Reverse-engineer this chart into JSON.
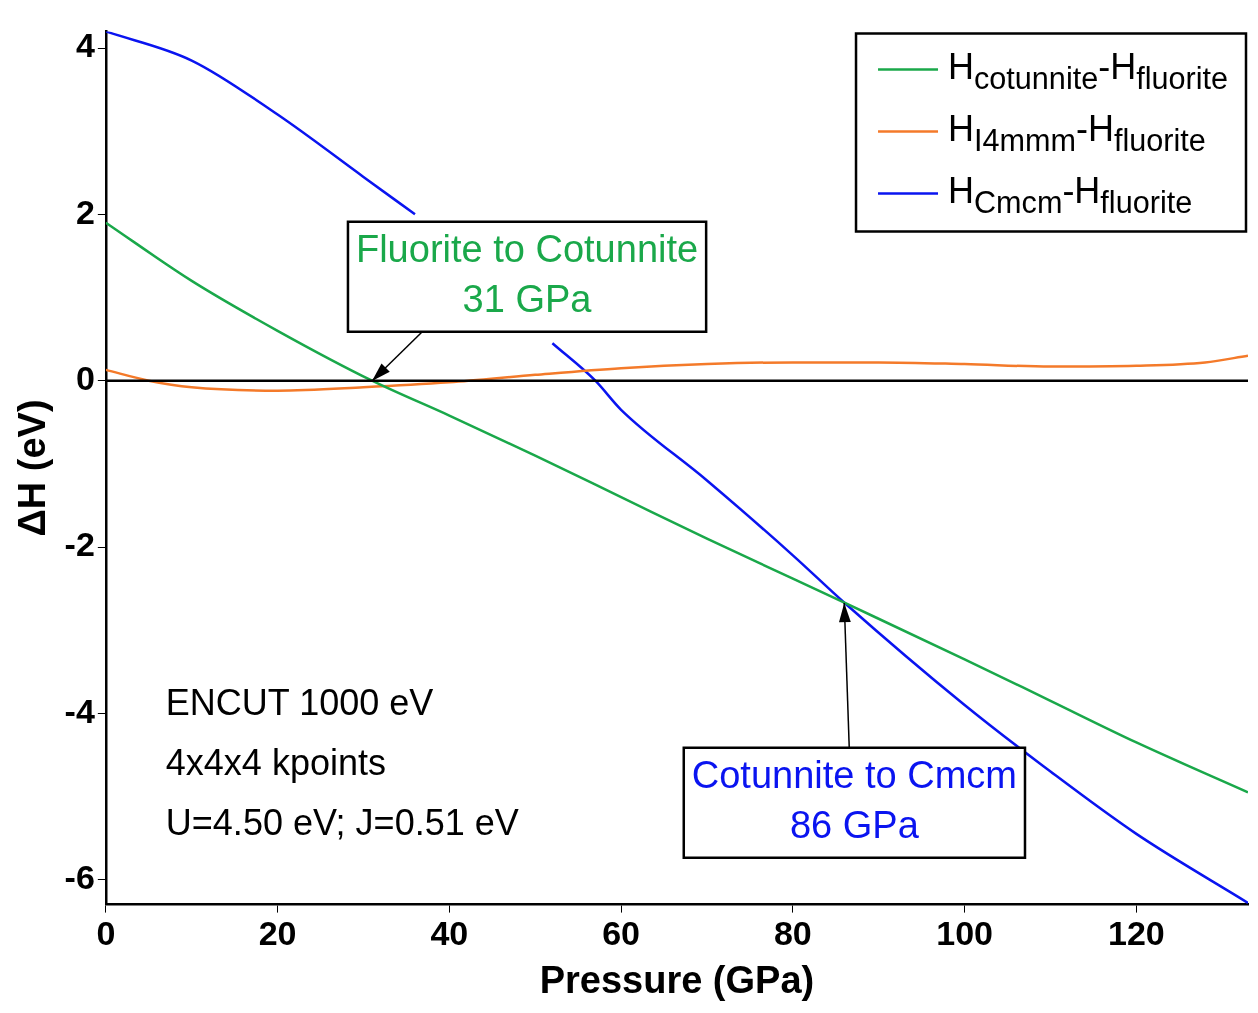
{
  "chart_data": {
    "type": "line",
    "xlabel": "Pressure (GPa)",
    "ylabel": "ΔH (eV)",
    "xlim": [
      0,
      133
    ],
    "ylim": [
      -6.3,
      4.2
    ],
    "xticks": [
      0,
      20,
      40,
      60,
      80,
      100,
      120
    ],
    "yticks": [
      -6,
      -4,
      -2,
      0,
      2,
      4
    ],
    "grid": false,
    "legend": "top right",
    "marker": "none",
    "line_style": "solid",
    "series": [
      {
        "name": "H$_{cotunnite}$-H$_{fluorite}$",
        "color": "#1aa84a",
        "x": [
          0,
          10,
          20,
          31,
          40,
          50,
          60,
          70,
          80,
          86,
          100,
          110,
          120,
          133
        ],
        "values": [
          1.9,
          1.2,
          0.6,
          0,
          -0.42,
          -0.9,
          -1.4,
          -1.9,
          -2.38,
          -2.67,
          -3.35,
          -3.85,
          -4.35,
          -4.95
        ]
      },
      {
        "name": "H$_{I4mmm}$-H$_{fluorite}$",
        "color": "#f47a2a",
        "x": [
          0,
          5,
          10,
          20,
          30,
          40,
          50,
          60,
          70,
          80,
          90,
          100,
          110,
          120,
          128,
          133
        ],
        "values": [
          0.13,
          0,
          -0.08,
          -0.12,
          -0.08,
          -0.02,
          0.07,
          0.15,
          0.2,
          0.22,
          0.22,
          0.2,
          0.17,
          0.18,
          0.22,
          0.3
        ]
      },
      {
        "name": "H$_{Cmcm}$-H$_{fluorite}$",
        "color": "#0a14f0",
        "x": [
          0,
          10,
          20,
          30,
          36,
          40,
          52,
          57,
          60,
          70,
          80,
          86,
          100,
          110,
          120,
          133
        ],
        "values": [
          4.2,
          3.85,
          3.2,
          2.45,
          2.0,
          null,
          0.45,
          0,
          -0.35,
          -1.2,
          -2.1,
          -2.67,
          -3.9,
          -4.7,
          -5.45,
          -6.28
        ]
      }
    ],
    "ref_lines": [
      {
        "axis": "y",
        "value": 0,
        "color": "#000000"
      }
    ],
    "annotations": [
      {
        "text": "Fluorite to Cotunnite\n31 GPa",
        "x": 31,
        "y": 0
      },
      {
        "text": "Cotunnite to Cmcm\n86 GPa",
        "x": 86,
        "y": -2.67
      },
      "ENCUT 1000 eV",
      "4x4x4 kpoints",
      "U=4.50 eV; J=0.51 eV"
    ]
  }
}
